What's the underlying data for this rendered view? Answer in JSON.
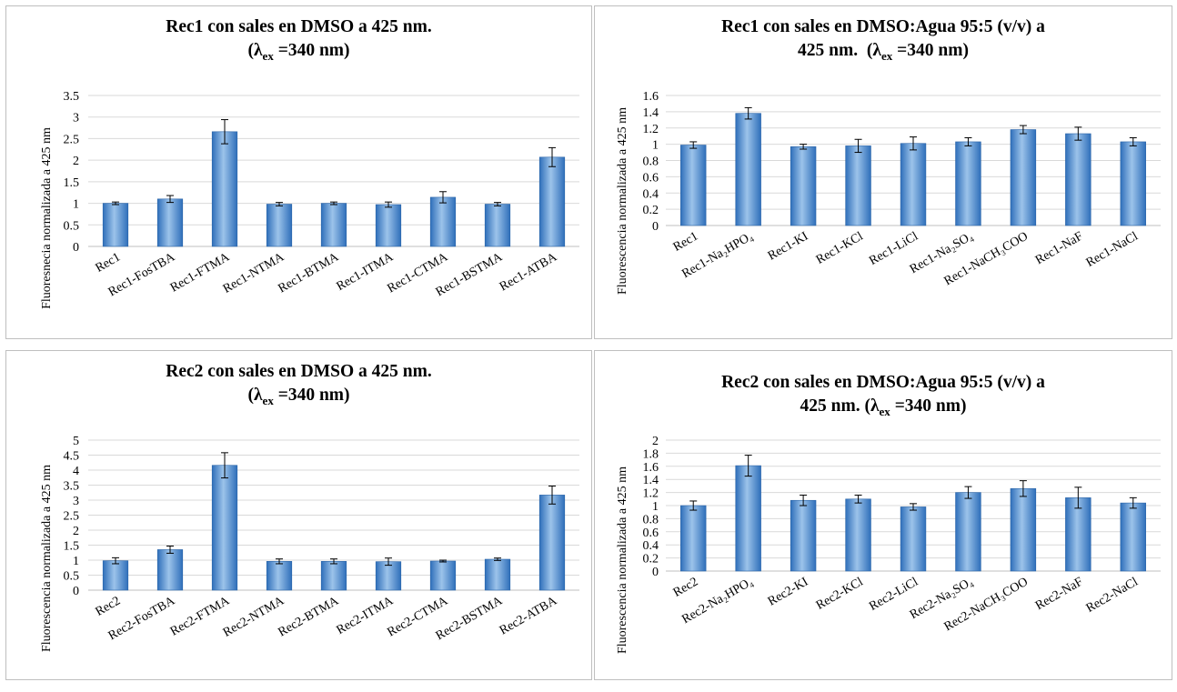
{
  "colors": {
    "bar_light": "#9cc3ea",
    "bar_dark": "#2f6fba",
    "bar_edge": "#2a64a8",
    "grid": "#d9d9d9",
    "error": "#000000"
  },
  "chart_data": [
    {
      "type": "bar",
      "title_line1": "Rec1 con sales en DMSO a 425 nm.",
      "title_line2": "(λex =340 nm)",
      "ylabel": "Fluoresnecia normalizada a 425 nm",
      "xlabel": "",
      "ylim": [
        0,
        3.5
      ],
      "ytick_step": 0.5,
      "yticks": [
        "0",
        "0.5",
        "1",
        "1.5",
        "2",
        "2.5",
        "3",
        "3.5"
      ],
      "grid": true,
      "categories": [
        "Rec1",
        "Rec1-FosTBA",
        "Rec1-FTMA",
        "Rec1-NTMA",
        "Rec1-BTMA",
        "Rec1-ITMA",
        "Rec1-CTMA",
        "Rec1-BSTMA",
        "Rec1-ATBA"
      ],
      "values": [
        1.0,
        1.1,
        2.66,
        0.98,
        1.0,
        0.97,
        1.14,
        0.98,
        2.07
      ],
      "errors": [
        0.03,
        0.08,
        0.28,
        0.04,
        0.03,
        0.06,
        0.13,
        0.04,
        0.22
      ]
    },
    {
      "type": "bar",
      "title_line1": "Rec1 con sales en DMSO:Agua 95:5 (v/v) a",
      "title_line2": "425 nm.  (λex =340 nm)",
      "ylabel": "Fluorescencia normalizada  a 425 nm",
      "xlabel": "",
      "ylim": [
        0,
        1.6
      ],
      "ytick_step": 0.2,
      "yticks": [
        "0",
        "0.2",
        "0.4",
        "0.6",
        "0.8",
        "1",
        "1.2",
        "1.4",
        "1.6"
      ],
      "grid": true,
      "categories": [
        "Rec1",
        "Rec1-Na₂HPO₄",
        "Rec1-KI",
        "Rec1-KCl",
        "Rec1-LiCl",
        "Rec1-Na₂SO₄",
        "Rec1-NaCH₃COO",
        "Rec1-NaF",
        "Rec1-NaCl"
      ],
      "values": [
        0.99,
        1.38,
        0.97,
        0.98,
        1.01,
        1.03,
        1.18,
        1.13,
        1.03
      ],
      "errors": [
        0.04,
        0.07,
        0.03,
        0.08,
        0.08,
        0.05,
        0.05,
        0.08,
        0.05
      ]
    },
    {
      "type": "bar",
      "title_line1": "Rec2 con sales en DMSO a 425 nm.",
      "title_line2": "(λex =340 nm)",
      "ylabel": "Fluorescencia normalizada a 425 nm",
      "xlabel": "",
      "ylim": [
        0,
        5
      ],
      "ytick_step": 0.5,
      "yticks": [
        "0",
        "0.5",
        "1",
        "1.5",
        "2",
        "2.5",
        "3",
        "3.5",
        "4",
        "4.5",
        "5"
      ],
      "grid": true,
      "categories": [
        "Rec2",
        "Rec2-FosTBA",
        "Rec2-FTMA",
        "Rec2-NTMA",
        "Rec2-BTMA",
        "Rec2-ITMA",
        "Rec2-CTMA",
        "Rec2-BSTMA",
        "Rec2-ATBA"
      ],
      "values": [
        0.98,
        1.35,
        4.16,
        0.96,
        0.96,
        0.95,
        0.97,
        1.03,
        3.17
      ],
      "errors": [
        0.1,
        0.12,
        0.42,
        0.08,
        0.08,
        0.12,
        0.03,
        0.04,
        0.3
      ]
    },
    {
      "type": "bar",
      "title_line1": "Rec2 con sales en DMSO:Agua 95:5 (v/v) a",
      "title_line2": "425 nm. (λex =340 nm)",
      "ylabel": "Fluorescencia normalizada  a 425 nm",
      "xlabel": "",
      "ylim": [
        0,
        2
      ],
      "ytick_step": 0.2,
      "yticks": [
        "0",
        "0.2",
        "0.4",
        "0.6",
        "0.8",
        "1",
        "1.2",
        "1.4",
        "1.6",
        "1.8",
        "2"
      ],
      "grid": true,
      "categories": [
        "Rec2",
        "Rec2-Na₂HPO₄",
        "Rec2-KI",
        "Rec2-KCl",
        "Rec2-LiCl",
        "Rec2-Na₂SO₄",
        "Rec2-NaCH₃COO",
        "Rec2-NaF",
        "Rec2-NaCl"
      ],
      "values": [
        1.0,
        1.61,
        1.08,
        1.1,
        0.98,
        1.2,
        1.26,
        1.12,
        1.04
      ],
      "errors": [
        0.07,
        0.16,
        0.08,
        0.06,
        0.05,
        0.09,
        0.12,
        0.16,
        0.08
      ]
    }
  ]
}
